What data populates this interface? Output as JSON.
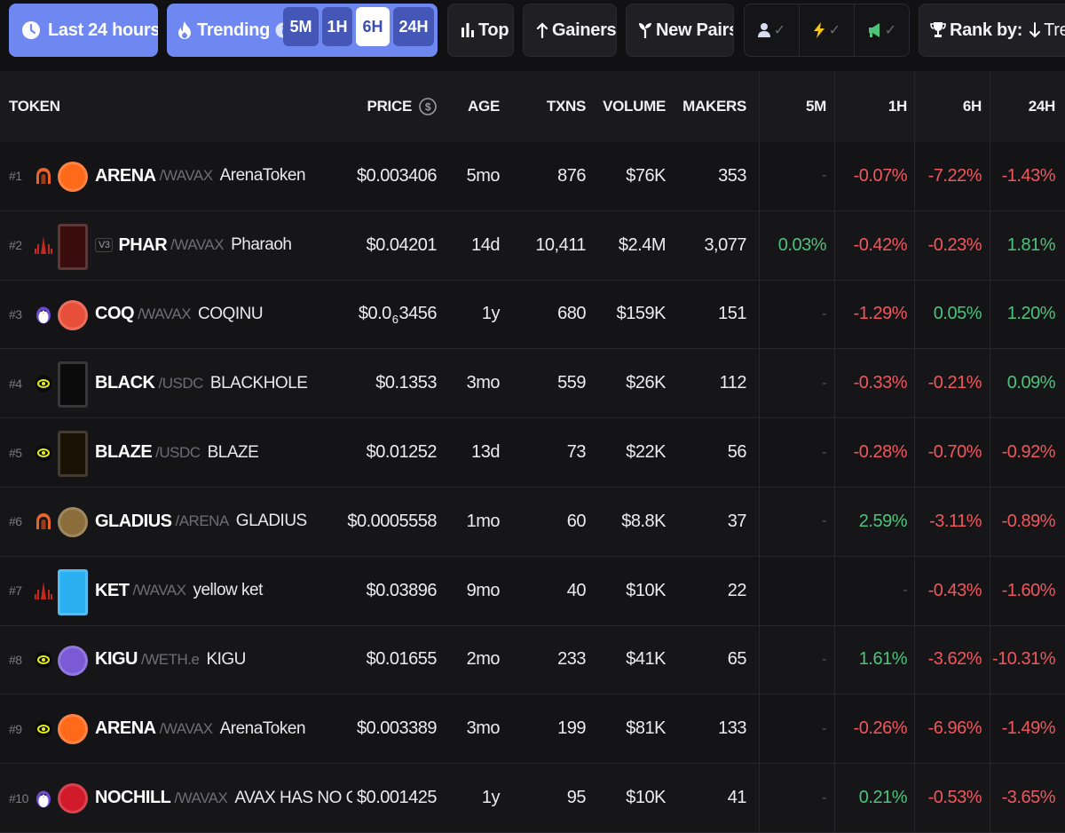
{
  "toolbar": {
    "time_range": "Last 24 hours",
    "trending_label": "Trending",
    "timeframes": [
      "5M",
      "1H",
      "6H",
      "24H"
    ],
    "active_timeframe": "6H",
    "top_label": "Top",
    "gainers_label": "Gainers",
    "new_pairs_label": "New Pairs",
    "rank_by_label": "Rank by:",
    "rank_by_value": "Trend"
  },
  "columns": {
    "token": "TOKEN",
    "price": "PRICE",
    "age": "AGE",
    "txns": "TXNS",
    "volume": "VOLUME",
    "makers": "MAKERS",
    "c5m": "5M",
    "c1h": "1H",
    "c6h": "6H",
    "c24h": "24H"
  },
  "colors": {
    "accent": "#6f87f0",
    "positive": "#4cc37a",
    "negative": "#f0575d"
  },
  "rows": [
    {
      "rank": "#1",
      "dex": "arena-icon",
      "symbol": "ARENA",
      "version": "",
      "quote": "/WAVAX",
      "name": "ArenaToken",
      "price": "$0.003406",
      "price_sub": "",
      "price_rest": "",
      "age": "5mo",
      "txns": "876",
      "volume": "$76K",
      "makers": "353",
      "c5m": "-",
      "c1h": "-0.07%",
      "c6h": "-7.22%",
      "c24h": "-1.43%",
      "logo_color": "#ff6a1a"
    },
    {
      "rank": "#2",
      "dex": "pharaoh-icon",
      "symbol": "PHAR",
      "version": "V3",
      "quote": "/WAVAX",
      "name": "Pharaoh",
      "price": "$0.04201",
      "price_sub": "",
      "price_rest": "",
      "age": "14d",
      "txns": "10,411",
      "volume": "$2.4M",
      "makers": "3,077",
      "c5m": "0.03%",
      "c1h": "-0.42%",
      "c6h": "-0.23%",
      "c24h": "1.81%",
      "logo_color": "#3a0c0c"
    },
    {
      "rank": "#3",
      "dex": "penguin-icon",
      "symbol": "COQ",
      "version": "",
      "quote": "/WAVAX",
      "name": "COQINU",
      "price": "$0.0",
      "price_sub": "6",
      "price_rest": "3456",
      "age": "1y",
      "txns": "680",
      "volume": "$159K",
      "makers": "151",
      "c5m": "-",
      "c1h": "-1.29%",
      "c6h": "0.05%",
      "c24h": "1.20%",
      "logo_color": "#e84f3a"
    },
    {
      "rank": "#4",
      "dex": "blackhole-icon",
      "symbol": "BLACK",
      "version": "",
      "quote": "/USDC",
      "name": "BLACKHOLE",
      "price": "$0.1353",
      "price_sub": "",
      "price_rest": "",
      "age": "3mo",
      "txns": "559",
      "volume": "$26K",
      "makers": "112",
      "c5m": "-",
      "c1h": "-0.33%",
      "c6h": "-0.21%",
      "c24h": "0.09%",
      "logo_color": "#0b0b0b"
    },
    {
      "rank": "#5",
      "dex": "blackhole-icon",
      "symbol": "BLAZE",
      "version": "",
      "quote": "/USDC",
      "name": "BLAZE",
      "price": "$0.01252",
      "price_sub": "",
      "price_rest": "",
      "age": "13d",
      "txns": "73",
      "volume": "$22K",
      "makers": "56",
      "c5m": "-",
      "c1h": "-0.28%",
      "c6h": "-0.70%",
      "c24h": "-0.92%",
      "logo_color": "#1b1206"
    },
    {
      "rank": "#6",
      "dex": "arena-icon",
      "symbol": "GLADIUS",
      "version": "",
      "quote": "/ARENA",
      "name": "GLADIUS",
      "price": "$0.0005558",
      "price_sub": "",
      "price_rest": "",
      "age": "1mo",
      "txns": "60",
      "volume": "$8.8K",
      "makers": "37",
      "c5m": "-",
      "c1h": "2.59%",
      "c6h": "-3.11%",
      "c24h": "-0.89%",
      "logo_color": "#8a6d3b"
    },
    {
      "rank": "#7",
      "dex": "pharaoh-icon",
      "symbol": "KET",
      "version": "",
      "quote": "/WAVAX",
      "name": "yellow ket",
      "price": "$0.03896",
      "price_sub": "",
      "price_rest": "",
      "age": "9mo",
      "txns": "40",
      "volume": "$10K",
      "makers": "22",
      "c5m": "",
      "c1h": "-",
      "c6h": "-0.43%",
      "c24h": "-1.60%",
      "logo_color": "#2ab0f0"
    },
    {
      "rank": "#8",
      "dex": "blackhole-icon",
      "symbol": "KIGU",
      "version": "",
      "quote": "/WETH.e",
      "name": "KIGU",
      "price": "$0.01655",
      "price_sub": "",
      "price_rest": "",
      "age": "2mo",
      "txns": "233",
      "volume": "$41K",
      "makers": "65",
      "c5m": "-",
      "c1h": "1.61%",
      "c6h": "-3.62%",
      "c24h": "-10.31%",
      "logo_color": "#7b5ad6"
    },
    {
      "rank": "#9",
      "dex": "blackhole-icon",
      "symbol": "ARENA",
      "version": "",
      "quote": "/WAVAX",
      "name": "ArenaToken",
      "price": "$0.003389",
      "price_sub": "",
      "price_rest": "",
      "age": "3mo",
      "txns": "199",
      "volume": "$81K",
      "makers": "133",
      "c5m": "-",
      "c1h": "-0.26%",
      "c6h": "-6.96%",
      "c24h": "-1.49%",
      "logo_color": "#ff6a1a"
    },
    {
      "rank": "#10",
      "dex": "penguin-icon",
      "symbol": "NOCHILL",
      "version": "",
      "quote": "/WAVAX",
      "name": "AVAX HAS NO CHIL",
      "price": "$0.001425",
      "price_sub": "",
      "price_rest": "",
      "age": "1y",
      "txns": "95",
      "volume": "$10K",
      "makers": "41",
      "c5m": "-",
      "c1h": "0.21%",
      "c6h": "-0.53%",
      "c24h": "-3.65%",
      "logo_color": "#d11a2a"
    }
  ]
}
